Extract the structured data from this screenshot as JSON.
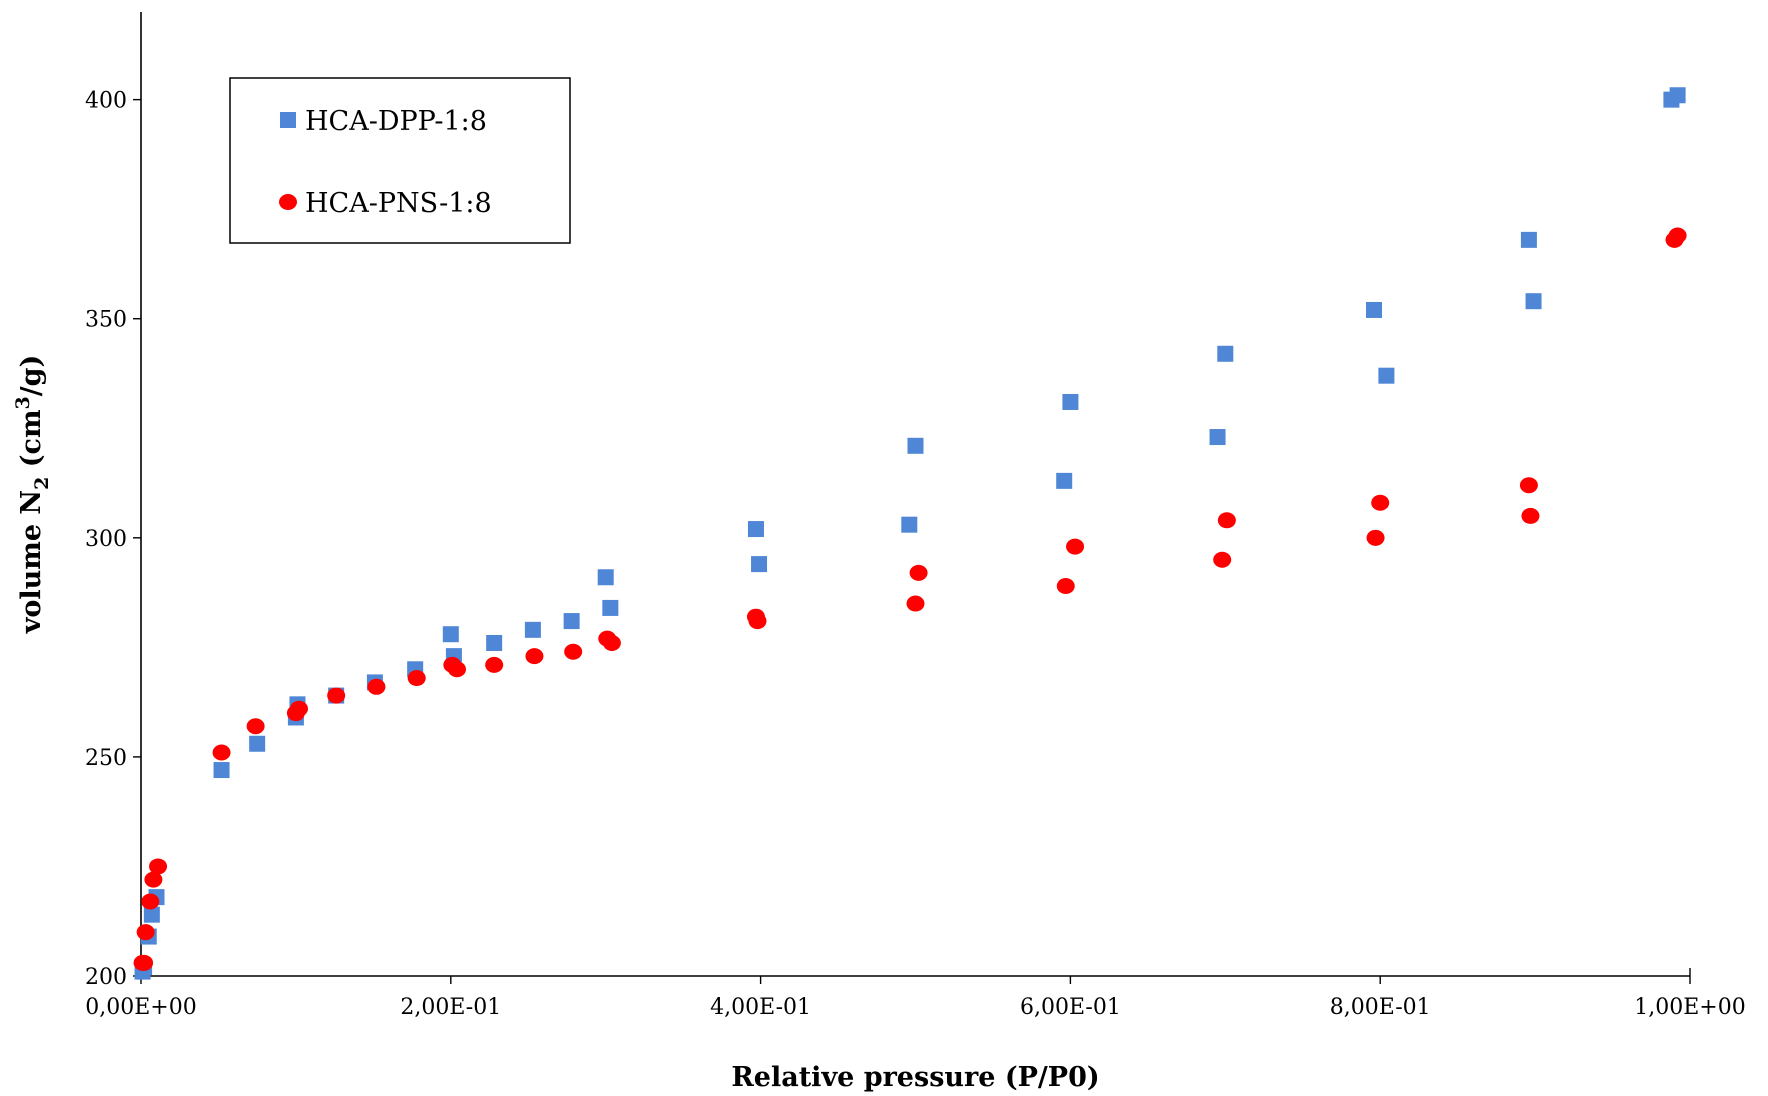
{
  "chart_data": {
    "type": "scatter",
    "xlabel": "Relative pressure (P/P0)",
    "ylabel": {
      "prefix": "volume  N",
      "sub": "2",
      "mid": " (cm",
      "sup": "3",
      "suffix": "/g)"
    },
    "xlim": [
      0,
      1.0
    ],
    "ylim": [
      200,
      420
    ],
    "x_ticks": [
      0,
      0.2,
      0.4,
      0.6,
      0.8,
      1.0
    ],
    "x_tick_labels": [
      "0,00E+00",
      "2,00E-01",
      "4,00E-01",
      "6,00E-01",
      "8,00E-01",
      "1,00E+00"
    ],
    "y_ticks": [
      200,
      250,
      300,
      350,
      400
    ],
    "y_tick_labels": [
      "200",
      "250",
      "300",
      "350",
      "400"
    ],
    "grid": false,
    "legend_position": "top-left",
    "series": [
      {
        "name": "HCA-DPP-1:8",
        "marker": "square",
        "color": "#4F86D6",
        "x": [
          0.001,
          0.002,
          0.005,
          0.007,
          0.01,
          0.052,
          0.075,
          0.1,
          0.101,
          0.126,
          0.151,
          0.177,
          0.2,
          0.202,
          0.228,
          0.253,
          0.278,
          0.3,
          0.303,
          0.397,
          0.399,
          0.496,
          0.5,
          0.596,
          0.6,
          0.695,
          0.7,
          0.796,
          0.804,
          0.896,
          0.899,
          0.988,
          0.992
        ],
        "y": [
          201,
          202,
          209,
          214,
          218,
          247,
          253,
          259,
          262,
          264,
          267,
          270,
          278,
          273,
          276,
          279,
          281,
          291,
          284,
          302,
          294,
          303,
          321,
          313,
          331,
          323,
          342,
          352,
          337,
          368,
          354,
          400,
          401
        ]
      },
      {
        "name": "HCA-PNS-1:8",
        "marker": "circle",
        "color": "#FF0000",
        "x": [
          0.001,
          0.002,
          0.003,
          0.006,
          0.008,
          0.011,
          0.052,
          0.074,
          0.1,
          0.102,
          0.126,
          0.152,
          0.178,
          0.201,
          0.204,
          0.228,
          0.254,
          0.279,
          0.301,
          0.304,
          0.397,
          0.398,
          0.5,
          0.502,
          0.597,
          0.603,
          0.698,
          0.701,
          0.797,
          0.8,
          0.896,
          0.897,
          0.99,
          0.992
        ],
        "y": [
          203,
          203,
          210,
          217,
          222,
          225,
          251,
          257,
          260,
          261,
          264,
          266,
          268,
          271,
          270,
          271,
          273,
          274,
          277,
          276,
          282,
          281,
          285,
          292,
          289,
          298,
          295,
          304,
          300,
          308,
          312,
          305,
          368,
          369
        ]
      }
    ]
  }
}
